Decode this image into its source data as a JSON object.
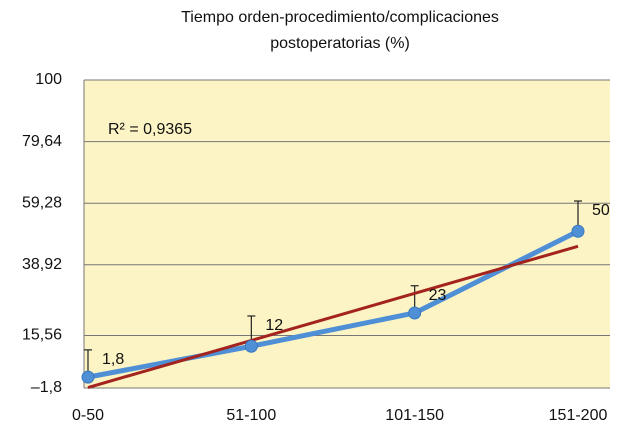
{
  "chart_data": {
    "type": "line",
    "title": [
      "Tiempo orden-procedimiento/complicaciones",
      "postoperatorias (%)"
    ],
    "annotation": "R² = 0,9365",
    "categories": [
      "0-50",
      "51-100",
      "101-150",
      "151-200"
    ],
    "series": [
      {
        "color": "#4f8fd6",
        "values": [
          1.8,
          12,
          23,
          50
        ],
        "value_labels": [
          "1,8",
          "12",
          "23",
          "50"
        ],
        "errors": [
          9,
          10,
          9,
          10
        ]
      }
    ],
    "trendline": {
      "type": "linear",
      "color": "#a3231f"
    },
    "ylim": [
      -1.8,
      100
    ],
    "yticks": [
      {
        "value": -1.8,
        "label": "–1,8"
      },
      {
        "value": 15.56,
        "label": "15,56"
      },
      {
        "value": 38.92,
        "label": "38,92"
      },
      {
        "value": 59.28,
        "label": "59,28"
      },
      {
        "value": 79.64,
        "label": "79,64"
      },
      100
    ],
    "grid": true,
    "plot_background": "#fcf4c4"
  }
}
